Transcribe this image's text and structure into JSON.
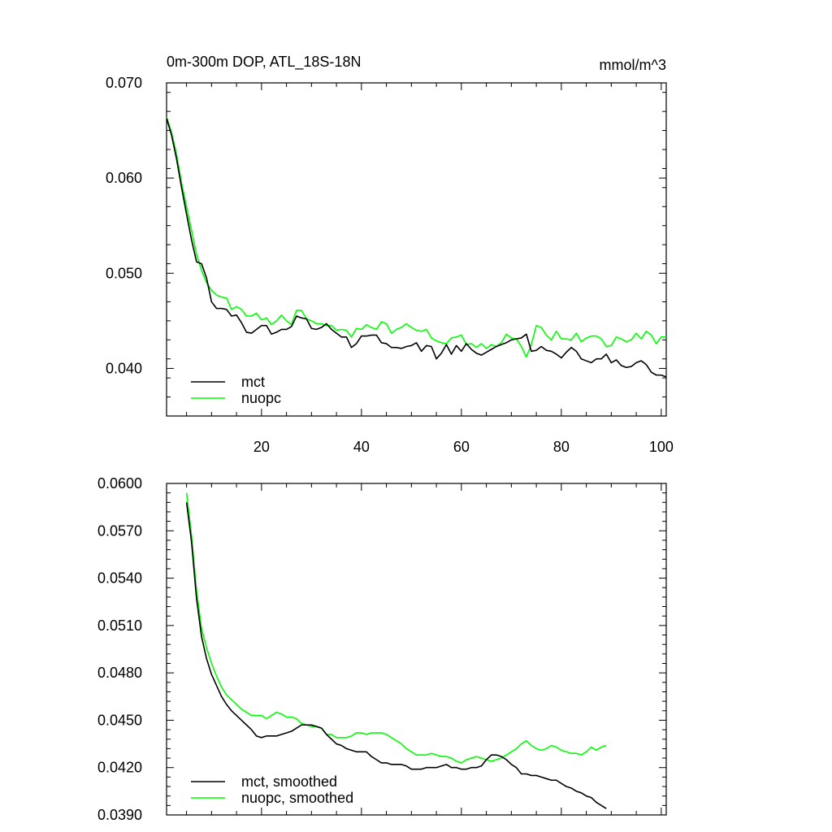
{
  "title": "0m-300m DOP, ATL_18S-18N",
  "units": "mmol/m^3",
  "chart_data": [
    {
      "type": "line",
      "xlim": [
        1,
        101
      ],
      "ylim": [
        0.035,
        0.07
      ],
      "x_ticks": [
        20,
        40,
        60,
        80,
        100
      ],
      "y_ticks": [
        0.04,
        0.05,
        0.06,
        0.07
      ],
      "y_tick_labels": [
        "0.040",
        "0.050",
        "0.060",
        "0.070"
      ],
      "legend_position": "bottom-left",
      "series": [
        {
          "name": "mct",
          "color": "#000000",
          "x_start": 1,
          "values": [
            0.0663,
            0.0645,
            0.062,
            0.059,
            0.0562,
            0.0535,
            0.0512,
            0.051,
            0.0495,
            0.047,
            0.0463,
            0.0463,
            0.0462,
            0.0455,
            0.0456,
            0.0448,
            0.0438,
            0.0437,
            0.0441,
            0.0445,
            0.0445,
            0.0436,
            0.0438,
            0.0441,
            0.0441,
            0.0444,
            0.0455,
            0.0453,
            0.0452,
            0.0442,
            0.0441,
            0.0443,
            0.0447,
            0.0441,
            0.0437,
            0.0433,
            0.0433,
            0.0422,
            0.0426,
            0.0434,
            0.0434,
            0.0435,
            0.0435,
            0.0427,
            0.0426,
            0.0422,
            0.0422,
            0.0421,
            0.0423,
            0.0424,
            0.0427,
            0.0418,
            0.0424,
            0.0423,
            0.041,
            0.0416,
            0.0425,
            0.0415,
            0.0424,
            0.0418,
            0.0426,
            0.042,
            0.0416,
            0.0414,
            0.0417,
            0.042,
            0.0423,
            0.0425,
            0.0427,
            0.043,
            0.0431,
            0.0432,
            0.0436,
            0.0418,
            0.0419,
            0.0423,
            0.0419,
            0.0418,
            0.0415,
            0.0411,
            0.0417,
            0.0422,
            0.0418,
            0.041,
            0.0408,
            0.0406,
            0.041,
            0.041,
            0.0415,
            0.0406,
            0.0409,
            0.0403,
            0.0401,
            0.0402,
            0.0406,
            0.0408,
            0.0404,
            0.0396,
            0.0393,
            0.0393,
            0.0391
          ]
        },
        {
          "name": "nuopc",
          "color": "#00ff00",
          "x_start": 1,
          "values": [
            0.0664,
            0.0648,
            0.0625,
            0.0595,
            0.057,
            0.0545,
            0.052,
            0.0503,
            0.049,
            0.0482,
            0.0477,
            0.0475,
            0.0474,
            0.0462,
            0.0465,
            0.0462,
            0.0455,
            0.0455,
            0.0458,
            0.0451,
            0.0453,
            0.0446,
            0.045,
            0.0456,
            0.045,
            0.0446,
            0.0461,
            0.0461,
            0.0452,
            0.045,
            0.0447,
            0.0447,
            0.0445,
            0.0445,
            0.044,
            0.0441,
            0.044,
            0.0433,
            0.0442,
            0.0441,
            0.0446,
            0.0443,
            0.0441,
            0.0449,
            0.0447,
            0.0437,
            0.0441,
            0.0443,
            0.0447,
            0.0443,
            0.044,
            0.0439,
            0.0441,
            0.0432,
            0.0429,
            0.0427,
            0.0426,
            0.0432,
            0.0433,
            0.0435,
            0.0425,
            0.0426,
            0.0422,
            0.0426,
            0.0421,
            0.0425,
            0.0423,
            0.0427,
            0.0436,
            0.0432,
            0.0431,
            0.0423,
            0.0412,
            0.0425,
            0.0445,
            0.0443,
            0.0435,
            0.043,
            0.0439,
            0.0431,
            0.0431,
            0.043,
            0.0437,
            0.0428,
            0.0432,
            0.0434,
            0.0434,
            0.0431,
            0.0423,
            0.0424,
            0.0433,
            0.0431,
            0.0428,
            0.043,
            0.0437,
            0.0431,
            0.0439,
            0.0435,
            0.0426,
            0.0433,
            0.0433
          ]
        }
      ]
    },
    {
      "type": "line",
      "xlim": [
        1,
        101
      ],
      "ylim": [
        0.039,
        0.06
      ],
      "x_ticks": [
        20,
        40,
        60,
        80,
        100
      ],
      "y_ticks": [
        0.039,
        0.042,
        0.045,
        0.048,
        0.051,
        0.054,
        0.057,
        0.06
      ],
      "y_tick_labels": [
        "0.0390",
        "0.0420",
        "0.0450",
        "0.0480",
        "0.0510",
        "0.0540",
        "0.0570",
        "0.0600"
      ],
      "legend_position": "bottom-left",
      "series": [
        {
          "name": "mct, smoothed",
          "color": "#000000",
          "x_start": 5,
          "values": [
            0.0588,
            0.0563,
            0.0527,
            0.0503,
            0.0489,
            0.0479,
            0.0472,
            0.0465,
            0.046,
            0.0456,
            0.0453,
            0.045,
            0.0447,
            0.0444,
            0.044,
            0.0439,
            0.044,
            0.044,
            0.044,
            0.0441,
            0.0442,
            0.0443,
            0.0445,
            0.0447,
            0.0447,
            0.0447,
            0.0446,
            0.0445,
            0.0441,
            0.0438,
            0.0435,
            0.0434,
            0.0432,
            0.0431,
            0.043,
            0.043,
            0.043,
            0.0427,
            0.0425,
            0.0423,
            0.0423,
            0.0422,
            0.0422,
            0.0422,
            0.0421,
            0.0419,
            0.0419,
            0.0419,
            0.042,
            0.042,
            0.042,
            0.0421,
            0.0422,
            0.042,
            0.042,
            0.0419,
            0.0419,
            0.042,
            0.042,
            0.0421,
            0.0425,
            0.0428,
            0.0428,
            0.0427,
            0.0425,
            0.0422,
            0.042,
            0.0416,
            0.0416,
            0.0415,
            0.0415,
            0.0414,
            0.0413,
            0.0412,
            0.0412,
            0.041,
            0.0408,
            0.0407,
            0.0405,
            0.0404,
            0.0402,
            0.0401,
            0.0398,
            0.0396,
            0.0394
          ]
        },
        {
          "name": "nuopc, smoothed",
          "color": "#00ff00",
          "x_start": 5,
          "values": [
            0.0594,
            0.0567,
            0.0532,
            0.0508,
            0.0496,
            0.0486,
            0.0478,
            0.0471,
            0.0466,
            0.0463,
            0.046,
            0.0457,
            0.0455,
            0.0453,
            0.0453,
            0.0453,
            0.0451,
            0.0453,
            0.0455,
            0.0454,
            0.0452,
            0.0452,
            0.0451,
            0.0448,
            0.0447,
            0.0446,
            0.0446,
            0.0445,
            0.0441,
            0.0441,
            0.0439,
            0.0439,
            0.0439,
            0.044,
            0.0442,
            0.0442,
            0.0441,
            0.0442,
            0.0442,
            0.0442,
            0.0441,
            0.0439,
            0.0437,
            0.0435,
            0.0432,
            0.043,
            0.0428,
            0.0428,
            0.0428,
            0.0429,
            0.0428,
            0.0427,
            0.0427,
            0.0426,
            0.0424,
            0.0423,
            0.0425,
            0.0426,
            0.0427,
            0.0426,
            0.0425,
            0.0424,
            0.0425,
            0.0426,
            0.0428,
            0.043,
            0.0432,
            0.0435,
            0.0437,
            0.0434,
            0.0432,
            0.0431,
            0.0432,
            0.0434,
            0.0433,
            0.0431,
            0.043,
            0.0429,
            0.0429,
            0.0428,
            0.043,
            0.0433,
            0.0431,
            0.0433,
            0.0434
          ]
        }
      ]
    }
  ]
}
